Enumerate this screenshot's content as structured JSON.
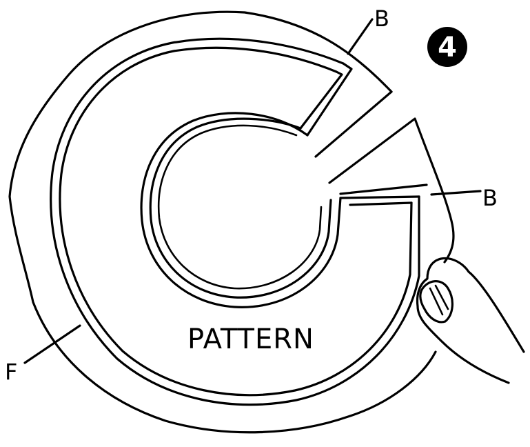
{
  "figure": {
    "step_number": "4",
    "center_label": "PATTERN",
    "callouts": {
      "top_B": "B",
      "right_B": "B",
      "left_F": "F"
    },
    "colors": {
      "ink": "#000000",
      "paper": "#ffffff"
    }
  }
}
